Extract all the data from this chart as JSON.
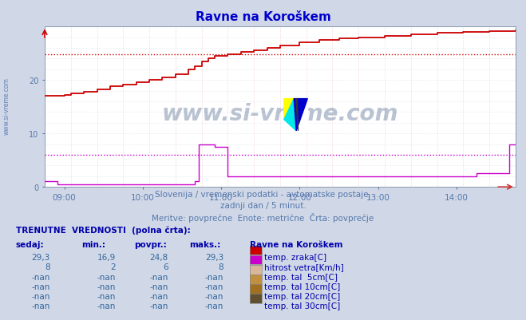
{
  "title": "Ravne na Koroškem",
  "title_color": "#0000cc",
  "bg_color": "#d0d8e8",
  "plot_bg_color": "#ffffff",
  "temp_color": "#cc0000",
  "wind_color": "#cc00cc",
  "avg_temp_line": 24.8,
  "avg_wind_line": 6.0,
  "yticks": [
    0,
    10,
    20
  ],
  "ylim": [
    0,
    30
  ],
  "xlabel_color": "#5577aa",
  "subtitle1": "Slovenija / vremenski podatki - avtomatske postaje.",
  "subtitle2": "zadnji dan / 5 minut.",
  "subtitle3": "Meritve: povprečne  Enote: metrične  Črta: povprečje",
  "watermark": "www.si-vreme.com",
  "legend_title": "Ravne na Koroškem",
  "legend_items": [
    {
      "label": "temp. zraka[C]",
      "color": "#cc0000"
    },
    {
      "label": "hitrost vetra[Km/h]",
      "color": "#cc00cc"
    },
    {
      "label": "temp. tal  5cm[C]",
      "color": "#d8b898"
    },
    {
      "label": "temp. tal 10cm[C]",
      "color": "#c09040"
    },
    {
      "label": "temp. tal 20cm[C]",
      "color": "#a07020"
    },
    {
      "label": "temp. tal 30cm[C]",
      "color": "#605030"
    }
  ],
  "table_headers": [
    "sedaj:",
    "min.:",
    "povpr.:",
    "maks.:"
  ],
  "table_rows": [
    [
      "29,3",
      "16,9",
      "24,8",
      "29,3"
    ],
    [
      "8",
      "2",
      "6",
      "8"
    ],
    [
      "-nan",
      "-nan",
      "-nan",
      "-nan"
    ],
    [
      "-nan",
      "-nan",
      "-nan",
      "-nan"
    ],
    [
      "-nan",
      "-nan",
      "-nan",
      "-nan"
    ],
    [
      "-nan",
      "-nan",
      "-nan",
      "-nan"
    ]
  ]
}
